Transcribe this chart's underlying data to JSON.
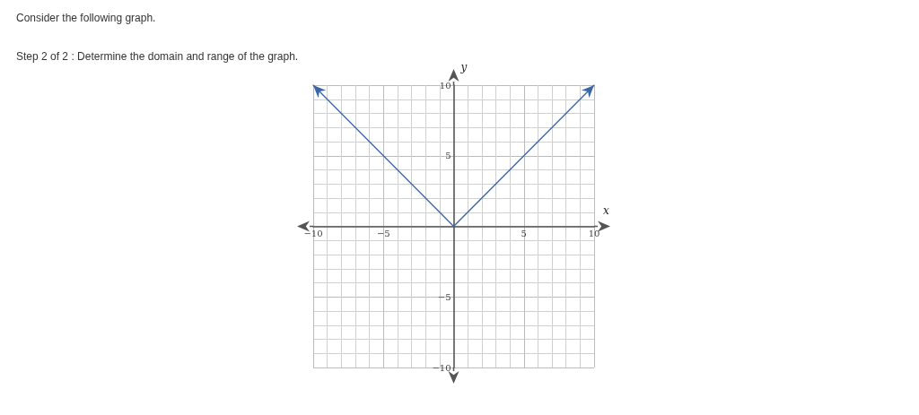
{
  "chart_data": {
    "type": "line",
    "title": "Consider the following graph.",
    "subtitle": "Step 2 of 2 : Determine the domain and range of the graph.",
    "xlabel": "x",
    "ylabel": "y",
    "series": [
      {
        "color": "#3a66a8",
        "x": [
          -10,
          0,
          10
        ],
        "values": [
          10,
          0,
          10
        ]
      }
    ],
    "xlim": [
      -10,
      10
    ],
    "xticks": [
      -10,
      -5,
      {
        "value": 0,
        "label": null
      },
      5,
      10
    ],
    "ylim": [
      -10,
      10
    ],
    "yticks": [
      -10,
      -5,
      {
        "value": 0,
        "label": null
      },
      5,
      10
    ],
    "grid": true
  }
}
